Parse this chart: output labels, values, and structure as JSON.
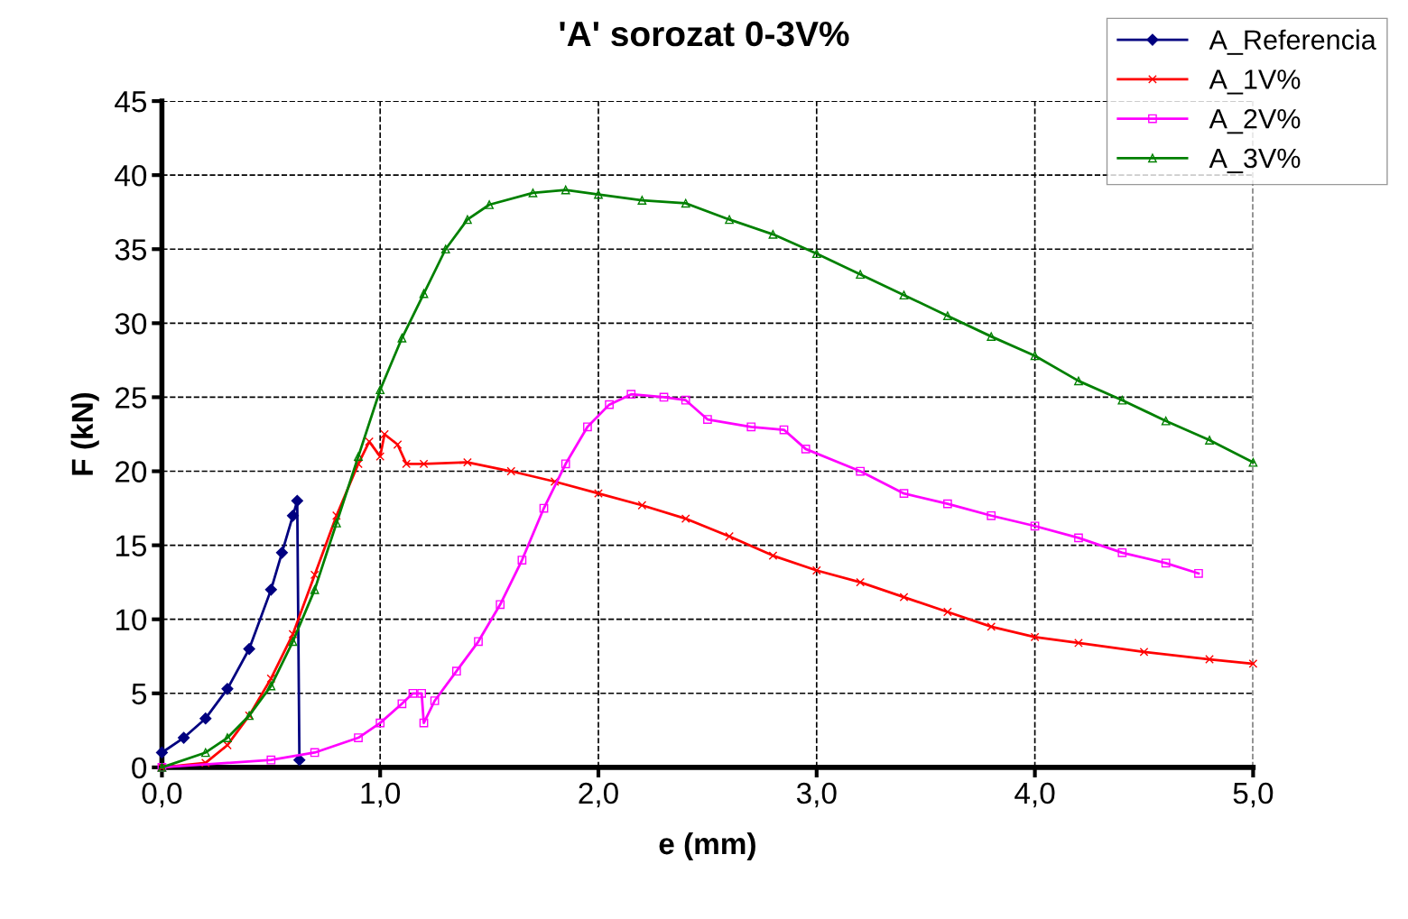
{
  "chart_data": {
    "type": "line",
    "title": "'A' sorozat 0-3V%",
    "xlabel": "e (mm)",
    "ylabel": "F (kN)",
    "xlim": [
      0,
      5
    ],
    "ylim": [
      0,
      45
    ],
    "xticks": [
      {
        "value": 0,
        "label": "0,0"
      },
      {
        "value": 1,
        "label": "1,0"
      },
      {
        "value": 2,
        "label": "2,0"
      },
      {
        "value": 3,
        "label": "3,0"
      },
      {
        "value": 4,
        "label": "4,0"
      },
      {
        "value": 5,
        "label": "5,0"
      }
    ],
    "yticks": [
      0,
      5,
      10,
      15,
      20,
      25,
      30,
      35,
      40,
      45
    ],
    "grid": true,
    "legend": "top right",
    "line_style": "solid",
    "series": [
      {
        "name": "A_Referencia",
        "color": "#000080",
        "marker": "diamond",
        "x": [
          0,
          0.1,
          0.2,
          0.3,
          0.4,
          0.5,
          0.55,
          0.6,
          0.62,
          0.63
        ],
        "values": [
          1,
          2,
          3.3,
          5.3,
          8,
          12,
          14.5,
          17,
          18,
          0.5
        ]
      },
      {
        "name": "A_1V%",
        "color": "#ff0000",
        "marker": "cross",
        "x": [
          0,
          0.2,
          0.3,
          0.4,
          0.5,
          0.6,
          0.7,
          0.8,
          0.9,
          0.95,
          1.0,
          1.02,
          1.08,
          1.12,
          1.2,
          1.4,
          1.6,
          1.8,
          2.0,
          2.2,
          2.4,
          2.6,
          2.8,
          3.0,
          3.2,
          3.4,
          3.6,
          3.8,
          4.0,
          4.2,
          4.5,
          4.8,
          5.0
        ],
        "values": [
          0,
          0.3,
          1.5,
          3.5,
          6,
          9,
          13,
          17,
          20.5,
          22,
          21,
          22.5,
          21.8,
          20.5,
          20.5,
          20.6,
          20,
          19.3,
          18.5,
          17.7,
          16.8,
          15.6,
          14.3,
          13.3,
          12.5,
          11.5,
          10.5,
          9.5,
          8.8,
          8.4,
          7.8,
          7.3,
          7.0
        ]
      },
      {
        "name": "A_2V%",
        "color": "#ff00ff",
        "marker": "square",
        "x": [
          0,
          0.5,
          0.7,
          0.9,
          1.0,
          1.1,
          1.15,
          1.19,
          1.2,
          1.25,
          1.35,
          1.45,
          1.55,
          1.65,
          1.75,
          1.85,
          1.95,
          2.05,
          2.15,
          2.3,
          2.4,
          2.5,
          2.7,
          2.85,
          2.95,
          3.2,
          3.4,
          3.6,
          3.8,
          4.0,
          4.2,
          4.4,
          4.6,
          4.75
        ],
        "values": [
          0,
          0.5,
          1,
          2,
          3,
          4.3,
          5,
          5,
          3,
          4.5,
          6.5,
          8.5,
          11,
          14,
          17.5,
          20.5,
          23,
          24.5,
          25.2,
          25,
          24.8,
          23.5,
          23,
          22.8,
          21.5,
          20,
          18.5,
          17.8,
          17,
          16.3,
          15.5,
          14.5,
          13.8,
          13.1
        ]
      },
      {
        "name": "A_3V%",
        "color": "#008000",
        "marker": "triangle",
        "x": [
          0,
          0.2,
          0.3,
          0.4,
          0.5,
          0.6,
          0.7,
          0.8,
          0.9,
          1.0,
          1.1,
          1.2,
          1.3,
          1.4,
          1.5,
          1.7,
          1.85,
          2.0,
          2.2,
          2.4,
          2.6,
          2.8,
          3.0,
          3.2,
          3.4,
          3.6,
          3.8,
          4.0,
          4.2,
          4.4,
          4.6,
          4.8,
          5.0
        ],
        "values": [
          0,
          1,
          2,
          3.5,
          5.5,
          8.5,
          12,
          16.5,
          21,
          25.5,
          29,
          32,
          35,
          37,
          38,
          38.8,
          39,
          38.7,
          38.3,
          38.1,
          37,
          36,
          34.7,
          33.3,
          31.9,
          30.5,
          29.1,
          27.8,
          26.1,
          24.8,
          23.4,
          22.1,
          20.6
        ]
      }
    ]
  }
}
